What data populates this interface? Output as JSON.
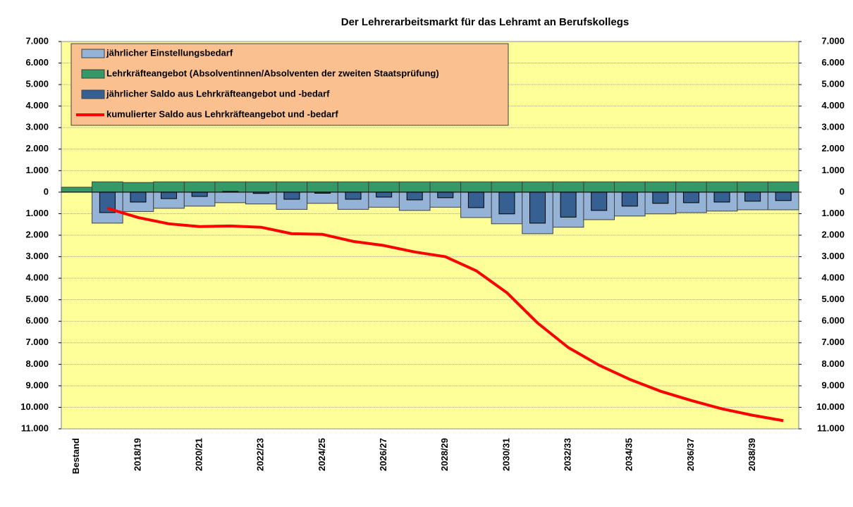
{
  "chart_data": {
    "type": "bar",
    "title": "Der Lehrerarbeitsmarkt für das Lehramt an Berufskollegs",
    "categories": [
      "Bestand",
      null,
      "2018/19",
      null,
      "2020/21",
      null,
      "2022/23",
      null,
      "2024/25",
      null,
      "2026/27",
      null,
      "2028/29",
      null,
      "2030/31",
      null,
      "2032/33",
      null,
      "2034/35",
      null,
      "2036/37",
      null,
      "2038/39",
      null
    ],
    "series": [
      {
        "name": "jährlicher Einstellungsbedarf",
        "type": "bar",
        "color": "#95b3d7",
        "values": [
          null,
          -1440,
          -900,
          -750,
          -650,
          -490,
          -550,
          -800,
          -520,
          -800,
          -700,
          -850,
          -700,
          -1180,
          -1470,
          -1930,
          -1630,
          -1280,
          -1110,
          -1010,
          -950,
          -880,
          -820,
          -820
        ]
      },
      {
        "name": "Lehrkräfteangebot (Absolventinnen/Absolventen der zweiten Staatsprüfung)",
        "type": "bar",
        "color": "#339966",
        "values": [
          230,
          480,
          450,
          480,
          480,
          480,
          480,
          480,
          480,
          480,
          480,
          480,
          480,
          480,
          480,
          480,
          480,
          480,
          480,
          480,
          480,
          480,
          480,
          480
        ]
      },
      {
        "name": "jährlicher Saldo aus Lehrkräfteangebot und -bedarf",
        "type": "narrowbar",
        "color": "#366092",
        "values": [
          null,
          -950,
          -460,
          -300,
          -200,
          30,
          -60,
          -330,
          -50,
          -330,
          -230,
          -360,
          -260,
          -720,
          -1010,
          -1440,
          -1160,
          -850,
          -650,
          -520,
          -490,
          -460,
          -420,
          -390
        ]
      },
      {
        "name": "kumulierter Saldo aus Lehrkräfteangebot und -bedarf",
        "type": "line",
        "color": "#ff0000",
        "values": [
          null,
          -750,
          -1180,
          -1470,
          -1600,
          -1570,
          -1630,
          -1930,
          -1960,
          -2290,
          -2480,
          -2780,
          -3000,
          -3650,
          -4670,
          -6080,
          -7220,
          -8040,
          -8700,
          -9250,
          -9680,
          -10070,
          -10370,
          -10620
        ]
      }
    ],
    "ylim": [
      7000,
      -11000
    ],
    "yticks": [
      {
        "value": 7000,
        "label": "7.000"
      },
      {
        "value": 6000,
        "label": "6.000"
      },
      {
        "value": 5000,
        "label": "5.000"
      },
      {
        "value": 4000,
        "label": "4.000"
      },
      {
        "value": 3000,
        "label": "3.000"
      },
      {
        "value": 2000,
        "label": "2.000"
      },
      {
        "value": 1000,
        "label": "1.000"
      },
      0,
      {
        "value": -1000,
        "label": "1.000"
      },
      {
        "value": -2000,
        "label": "2.000"
      },
      {
        "value": -3000,
        "label": "3.000"
      },
      {
        "value": -4000,
        "label": "4.000"
      },
      {
        "value": -5000,
        "label": "5.000"
      },
      {
        "value": -6000,
        "label": "6.000"
      },
      {
        "value": -7000,
        "label": "7.000"
      },
      {
        "value": -8000,
        "label": "8.000"
      },
      {
        "value": -9000,
        "label": "9.000"
      },
      {
        "value": -10000,
        "label": "10.000"
      },
      {
        "value": -11000,
        "label": "11.000"
      }
    ],
    "y2lim": [
      7000,
      -11000
    ],
    "y2ticks": [
      {
        "value": 7000,
        "label": "7.000"
      },
      {
        "value": 6000,
        "label": "6.000"
      },
      {
        "value": 5000,
        "label": "5.000"
      },
      {
        "value": 4000,
        "label": "4.000"
      },
      {
        "value": 3000,
        "label": "3.000"
      },
      {
        "value": 2000,
        "label": "2.000"
      },
      {
        "value": 1000,
        "label": "1.000"
      },
      0,
      {
        "value": -1000,
        "label": "1.000"
      },
      {
        "value": -2000,
        "label": "2.000"
      },
      {
        "value": -3000,
        "label": "3.000"
      },
      {
        "value": -4000,
        "label": "4.000"
      },
      {
        "value": -5000,
        "label": "5.000"
      },
      {
        "value": -6000,
        "label": "6.000"
      },
      {
        "value": -7000,
        "label": "7.000"
      },
      {
        "value": -8000,
        "label": "8.000"
      },
      {
        "value": -9000,
        "label": "9.000"
      },
      {
        "value": -10000,
        "label": "10.000"
      },
      {
        "value": -11000,
        "label": "11.000"
      }
    ],
    "grid": true,
    "legend": "top-left",
    "background": "#ffff99",
    "legend_background": "#fac090"
  }
}
